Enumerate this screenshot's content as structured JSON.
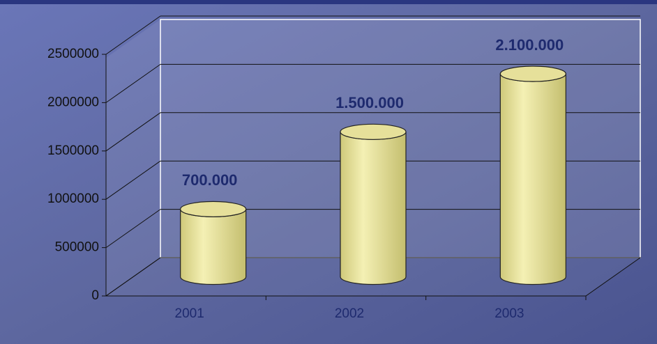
{
  "chart_data": {
    "type": "bar3d",
    "categories": [
      "2001",
      "2002",
      "2003"
    ],
    "values": [
      700000,
      1500000,
      2100000
    ],
    "value_labels": [
      "700.000",
      "1.500.000",
      "2.100.000"
    ],
    "color": "#e6e09a",
    "ylim": [
      0,
      2500000
    ],
    "yticks": [
      0,
      500000,
      1000000,
      1500000,
      2000000,
      2500000
    ],
    "grid": true
  }
}
